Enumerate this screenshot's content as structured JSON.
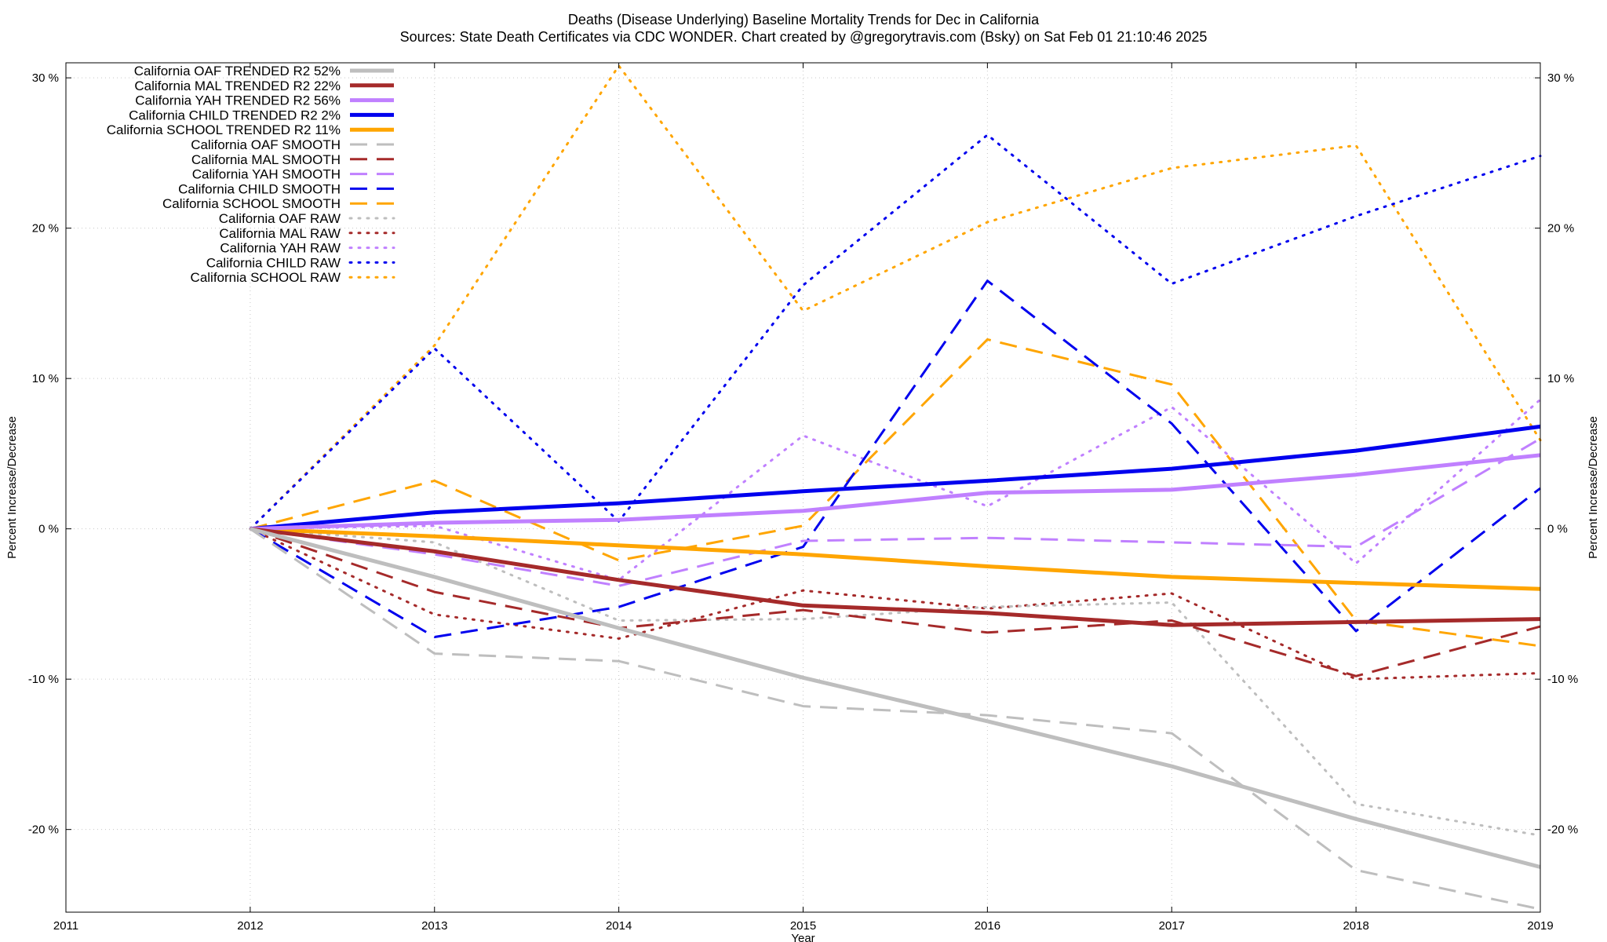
{
  "chart_data": {
    "type": "line",
    "title_line1": "Deaths (Disease Underlying)  Baseline Mortality Trends for Dec in California",
    "title_line2": "Sources: State Death Certificates via CDC WONDER.               Chart created by @gregorytravis.com (Bsky) on Sat Feb 01 21:10:46 2025",
    "xlabel": "Year",
    "ylabel_left": "Percent Increase/Decrease",
    "ylabel_right": "Percent Increase/Decrease",
    "xlim": [
      2011,
      2019
    ],
    "ylim": [
      -25.5,
      31
    ],
    "x_ticks": [
      2011,
      2012,
      2013,
      2014,
      2015,
      2016,
      2017,
      2018,
      2019
    ],
    "x_tick_labels": [
      "2011",
      "2012",
      "2013",
      "2014",
      "2015",
      "2016",
      "2017",
      "2018",
      "2019"
    ],
    "y_ticks": [
      -20,
      -10,
      0,
      10,
      20,
      30
    ],
    "y_tick_labels": [
      "-20 %",
      "-10 %",
      "0 %",
      "10 %",
      "20 %",
      "30 %"
    ],
    "grid": true,
    "legend_placement": "top-left",
    "x": [
      2012,
      2013,
      2014,
      2015,
      2016,
      2017,
      2018,
      2019
    ],
    "series": [
      {
        "name": "California OAF TRENDED R2  52%",
        "style": "solid",
        "color": "#bebebe",
        "values": [
          0,
          -3.2,
          -6.6,
          -9.9,
          -12.8,
          -15.8,
          -19.3,
          -22.5
        ]
      },
      {
        "name": "California MAL TRENDED R2  22%",
        "style": "solid",
        "color": "#a52a2a",
        "values": [
          0,
          -1.5,
          -3.4,
          -5.1,
          -5.6,
          -6.4,
          -6.2,
          -6.0
        ]
      },
      {
        "name": "California YAH TRENDED R2  56%",
        "style": "solid",
        "color": "#c080ff",
        "values": [
          0,
          0.4,
          0.6,
          1.2,
          2.4,
          2.6,
          3.6,
          4.9
        ]
      },
      {
        "name": "California CHILD TRENDED R2   2%",
        "style": "solid",
        "color": "#0000ee",
        "values": [
          0,
          1.1,
          1.7,
          2.5,
          3.2,
          4.0,
          5.2,
          6.8
        ]
      },
      {
        "name": "California SCHOOL TRENDED R2  11%",
        "style": "solid",
        "color": "#ffa500",
        "values": [
          0,
          -0.5,
          -1.1,
          -1.7,
          -2.5,
          -3.2,
          -3.6,
          -4.0
        ]
      },
      {
        "name": "California OAF SMOOTH",
        "style": "dashed",
        "color": "#bebebe",
        "values": [
          0,
          -8.3,
          -8.8,
          -11.8,
          -12.4,
          -13.6,
          -22.7,
          -25.3
        ]
      },
      {
        "name": "California MAL SMOOTH",
        "style": "dashed",
        "color": "#a52a2a",
        "values": [
          0,
          -4.2,
          -6.6,
          -5.4,
          -6.9,
          -6.1,
          -9.8,
          -6.5
        ]
      },
      {
        "name": "California YAH SMOOTH",
        "style": "dashed",
        "color": "#c080ff",
        "values": [
          0,
          -1.7,
          -3.8,
          -0.8,
          -0.6,
          -0.9,
          -1.2,
          6.0
        ]
      },
      {
        "name": "California CHILD SMOOTH",
        "style": "dashed",
        "color": "#0000ee",
        "values": [
          0,
          -7.2,
          -5.2,
          -1.2,
          16.5,
          7.0,
          -6.8,
          2.7
        ]
      },
      {
        "name": "California SCHOOL SMOOTH",
        "style": "dashed",
        "color": "#ffa500",
        "values": [
          0,
          3.2,
          -2.1,
          0.2,
          12.6,
          9.6,
          -6.1,
          -7.8
        ]
      },
      {
        "name": "California OAF RAW",
        "style": "dotted",
        "color": "#bebebe",
        "values": [
          0,
          -0.9,
          -6.1,
          -6.0,
          -5.2,
          -4.9,
          -18.3,
          -20.4
        ]
      },
      {
        "name": "California MAL RAW",
        "style": "dotted",
        "color": "#a52a2a",
        "values": [
          0,
          -5.7,
          -7.3,
          -4.1,
          -5.3,
          -4.3,
          -10.0,
          -9.6
        ]
      },
      {
        "name": "California YAH RAW",
        "style": "dotted",
        "color": "#c080ff",
        "values": [
          0,
          0.2,
          -3.4,
          6.2,
          1.5,
          8.1,
          -2.3,
          8.6
        ]
      },
      {
        "name": "California CHILD RAW",
        "style": "dotted",
        "color": "#0000ee",
        "values": [
          0,
          12.0,
          0.5,
          16.2,
          26.2,
          16.3,
          20.8,
          24.8
        ]
      },
      {
        "name": "California SCHOOL RAW",
        "style": "dotted",
        "color": "#ffa500",
        "values": [
          0,
          12.2,
          30.8,
          14.5,
          20.4,
          24.0,
          25.5,
          5.9
        ]
      }
    ]
  }
}
